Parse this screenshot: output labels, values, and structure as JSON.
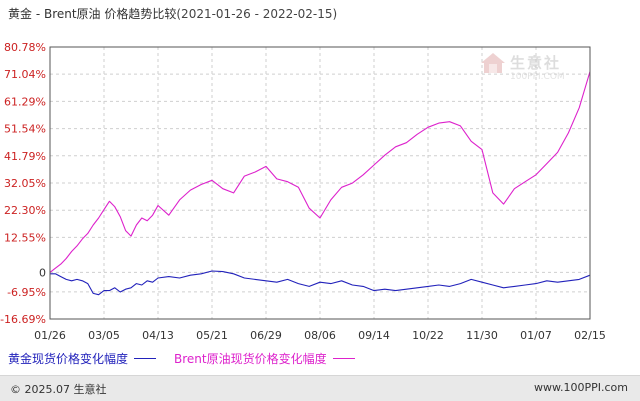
{
  "title": {
    "main": "黄金 - Brent原油 价格趋势比较",
    "range": "(2021-01-26 - 2022-02-15)"
  },
  "watermark": {
    "text": "生意社",
    "sub": "100PPI.COM"
  },
  "legend": [
    {
      "label": "黄金现货价格变化幅度",
      "color": "#2222bb"
    },
    {
      "label": "Brent原油现货价格变化幅度",
      "color": "#dd22cc"
    }
  ],
  "footer": {
    "left": "© 2025.07 生意社",
    "right": "www.100PPI.com"
  },
  "chart_data": {
    "type": "line",
    "ylim": [
      -16.69,
      80.78
    ],
    "y_ticks": [
      "80.78%",
      "71.04%",
      "61.29%",
      "51.54%",
      "41.79%",
      "32.05%",
      "22.30%",
      "12.55%",
      "0",
      "-6.95%",
      "-16.69%"
    ],
    "y_tick_values": [
      80.78,
      71.04,
      61.29,
      51.54,
      41.79,
      32.05,
      22.3,
      12.55,
      0,
      -6.95,
      -16.69
    ],
    "x_ticks": [
      "01/26",
      "03/05",
      "04/13",
      "05/21",
      "06/29",
      "08/06",
      "09/14",
      "10/22",
      "11/30",
      "01/07",
      "02/15"
    ],
    "grid": true,
    "series": [
      {
        "name": "黄金现货价格变化幅度",
        "color": "#2222bb",
        "x": [
          0,
          0.1,
          0.2,
          0.3,
          0.4,
          0.5,
          0.6,
          0.7,
          0.8,
          0.9,
          1.0,
          1.1,
          1.2,
          1.3,
          1.4,
          1.5,
          1.6,
          1.7,
          1.8,
          1.9,
          2.0,
          2.2,
          2.4,
          2.6,
          2.8,
          3.0,
          3.2,
          3.4,
          3.6,
          3.8,
          4.0,
          4.2,
          4.4,
          4.6,
          4.8,
          5.0,
          5.2,
          5.4,
          5.6,
          5.8,
          6.0,
          6.2,
          6.4,
          6.6,
          6.8,
          7.0,
          7.2,
          7.4,
          7.6,
          7.8,
          8.0,
          8.2,
          8.4,
          8.6,
          8.8,
          9.0,
          9.2,
          9.4,
          9.6,
          9.8,
          10.0
        ],
        "values": [
          -0.5,
          -0.5,
          -1.5,
          -2.5,
          -3.0,
          -2.5,
          -3.0,
          -4.0,
          -7.5,
          -8.0,
          -6.5,
          -6.5,
          -5.5,
          -7.0,
          -6.0,
          -5.5,
          -4.0,
          -4.5,
          -3.0,
          -3.5,
          -2.0,
          -1.5,
          -2.0,
          -1.0,
          -0.5,
          0.5,
          0.3,
          -0.5,
          -2.0,
          -2.5,
          -3.0,
          -3.5,
          -2.5,
          -4.0,
          -5.0,
          -3.5,
          -4.0,
          -3.0,
          -4.5,
          -5.0,
          -6.5,
          -6.0,
          -6.5,
          -6.0,
          -5.5,
          -5.0,
          -4.5,
          -5.0,
          -4.0,
          -2.5,
          -3.5,
          -4.5,
          -5.5,
          -5.0,
          -4.5,
          -4.0,
          -3.0,
          -3.5,
          -3.0,
          -2.5,
          -1.0
        ]
      },
      {
        "name": "Brent原油现货价格变化幅度",
        "color": "#dd22cc",
        "x": [
          0,
          0.1,
          0.2,
          0.3,
          0.4,
          0.5,
          0.6,
          0.7,
          0.8,
          0.9,
          1.0,
          1.1,
          1.2,
          1.3,
          1.4,
          1.5,
          1.6,
          1.7,
          1.8,
          1.9,
          2.0,
          2.2,
          2.4,
          2.6,
          2.8,
          3.0,
          3.2,
          3.4,
          3.6,
          3.8,
          4.0,
          4.2,
          4.4,
          4.6,
          4.8,
          5.0,
          5.2,
          5.4,
          5.6,
          5.8,
          6.0,
          6.2,
          6.4,
          6.6,
          6.8,
          7.0,
          7.2,
          7.4,
          7.6,
          7.8,
          8.0,
          8.2,
          8.4,
          8.6,
          8.8,
          9.0,
          9.2,
          9.4,
          9.6,
          9.8,
          10.0
        ],
        "values": [
          0,
          1.5,
          3.0,
          5.0,
          7.5,
          9.5,
          12.0,
          14.0,
          17.0,
          19.5,
          22.5,
          25.5,
          23.5,
          20.0,
          15.0,
          13.0,
          17.0,
          19.5,
          18.5,
          20.5,
          24.0,
          20.5,
          26.0,
          29.5,
          31.5,
          33.0,
          30.0,
          28.5,
          34.5,
          36.0,
          38.0,
          33.5,
          32.5,
          30.5,
          23.0,
          19.5,
          26.0,
          30.5,
          32.0,
          35.0,
          38.5,
          42.0,
          45.0,
          46.5,
          49.5,
          52.0,
          53.5,
          54.0,
          52.5,
          47.0,
          44.0,
          28.5,
          24.5,
          30.0,
          32.5,
          35.0,
          39.0,
          43.0,
          50.0,
          59.0,
          72.0
        ]
      }
    ]
  }
}
